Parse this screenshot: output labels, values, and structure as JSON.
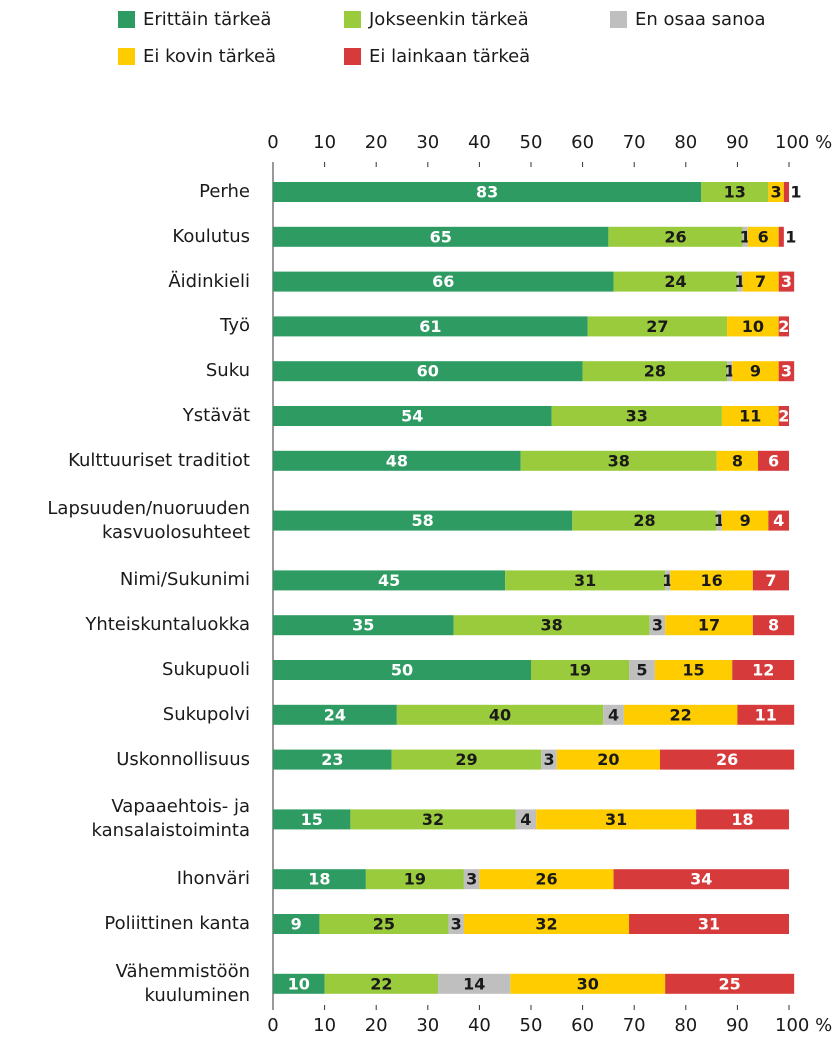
{
  "chart_data": {
    "type": "stacked_bar_horizontal",
    "categories": [
      "Perhe",
      "Koulutus",
      "Äidinkieli",
      "Työ",
      "Suku",
      "Ystävät",
      "Kulttuuriset traditiot",
      "Lapsuuden/nuoruuden\nkasvuolosuhteet",
      "Nimi/Sukunimi",
      "Yhteiskuntaluokka",
      "Sukupuoli",
      "Sukupolvi",
      "Uskonnollisuus",
      "Vapaaehtois- ja\nkansalaistoiminta",
      "Ihonväri",
      "Poliittinen kanta",
      "Vähemmistöön\nkuuluminen"
    ],
    "series": [
      {
        "name": "Erittäin tärkeä",
        "color": "#2e9b63",
        "values": [
          83,
          65,
          66,
          61,
          60,
          54,
          48,
          58,
          45,
          35,
          50,
          24,
          23,
          15,
          18,
          9,
          10
        ]
      },
      {
        "name": "Jokseenkin tärkeä",
        "color": "#9acb3c",
        "values": [
          13,
          26,
          24,
          27,
          28,
          33,
          38,
          28,
          31,
          38,
          19,
          40,
          29,
          32,
          19,
          25,
          22
        ]
      },
      {
        "name": "En osaa sanoa",
        "color": "#bfbfbf",
        "values": [
          0,
          1,
          1,
          0,
          1,
          0,
          0,
          1,
          1,
          3,
          5,
          4,
          3,
          4,
          3,
          3,
          14
        ]
      },
      {
        "name": "Ei kovin tärkeä",
        "color": "#ffcc00",
        "values": [
          3,
          6,
          7,
          10,
          9,
          11,
          8,
          9,
          16,
          17,
          15,
          22,
          20,
          31,
          26,
          32,
          30
        ]
      },
      {
        "name": "Ei lainkaan tärkeä",
        "color": "#d63a3a",
        "values": [
          1,
          1,
          3,
          2,
          3,
          2,
          6,
          4,
          7,
          8,
          12,
          11,
          26,
          18,
          34,
          31,
          25
        ]
      }
    ],
    "xlim": [
      0,
      100
    ],
    "xticks": [
      0,
      10,
      20,
      30,
      40,
      50,
      60,
      70,
      80,
      90,
      {
        "value": 100,
        "label": "100 %"
      }
    ]
  }
}
